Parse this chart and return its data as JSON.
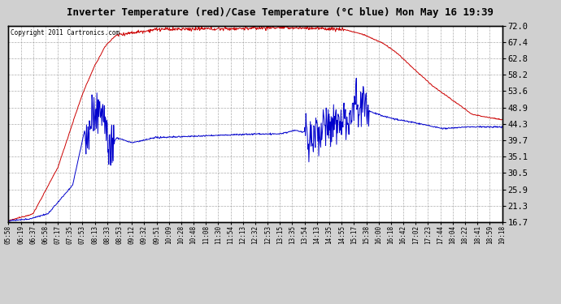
{
  "title": "Inverter Temperature (red)/Case Temperature (°C blue) Mon May 16 19:39",
  "copyright": "Copyright 2011 Cartronics.com",
  "ylabel_right_ticks": [
    72.0,
    67.4,
    62.8,
    58.2,
    53.6,
    48.9,
    44.3,
    39.7,
    35.1,
    30.5,
    25.9,
    21.3,
    16.7
  ],
  "ymin": 16.7,
  "ymax": 72.0,
  "bg_color": "#d0d0d0",
  "plot_bg_color": "#ffffff",
  "red_color": "#cc0000",
  "blue_color": "#0000cc",
  "grid_color": "#999999",
  "x_labels": [
    "05:58",
    "06:19",
    "06:37",
    "06:58",
    "07:17",
    "07:35",
    "07:53",
    "08:13",
    "08:33",
    "08:53",
    "09:12",
    "09:32",
    "09:51",
    "10:09",
    "10:28",
    "10:48",
    "11:08",
    "11:30",
    "11:54",
    "12:13",
    "12:32",
    "12:53",
    "13:15",
    "13:35",
    "13:54",
    "14:13",
    "14:35",
    "14:55",
    "15:17",
    "15:38",
    "16:00",
    "16:18",
    "16:42",
    "17:02",
    "17:23",
    "17:44",
    "18:04",
    "18:22",
    "18:41",
    "18:59",
    "19:18"
  ],
  "n_points": 1000,
  "red_base_points": {
    "t": [
      0.0,
      0.05,
      0.1,
      0.155,
      0.175,
      0.195,
      0.22,
      0.3,
      0.45,
      0.55,
      0.62,
      0.68,
      0.72,
      0.76,
      0.79,
      0.82,
      0.86,
      0.9,
      0.94,
      1.0
    ],
    "v": [
      17.0,
      19.0,
      32.0,
      55.0,
      63.0,
      66.5,
      69.5,
      71.0,
      71.2,
      71.5,
      71.3,
      71.0,
      69.5,
      67.0,
      64.0,
      60.0,
      55.0,
      51.0,
      47.0,
      45.5
    ]
  },
  "blue_base_points": {
    "t": [
      0.0,
      0.04,
      0.08,
      0.13,
      0.155,
      0.175,
      0.185,
      0.2,
      0.21,
      0.215,
      0.22,
      0.25,
      0.3,
      0.4,
      0.5,
      0.55,
      0.58,
      0.6,
      0.62,
      0.64,
      0.68,
      0.7,
      0.72,
      0.73,
      0.74,
      0.76,
      0.79,
      0.83,
      0.88,
      0.93,
      1.0
    ],
    "v": [
      17.0,
      17.5,
      19.0,
      27.0,
      43.0,
      49.0,
      46.0,
      40.0,
      38.0,
      39.5,
      40.5,
      39.0,
      40.5,
      41.0,
      41.5,
      41.5,
      42.5,
      42.0,
      40.0,
      43.5,
      44.0,
      49.0,
      49.5,
      48.0,
      47.5,
      46.5,
      45.5,
      44.5,
      43.0,
      43.5,
      43.5
    ]
  },
  "spike1_t_range": [
    0.155,
    0.215
  ],
  "spike2_t_range": [
    0.6,
    0.73
  ]
}
